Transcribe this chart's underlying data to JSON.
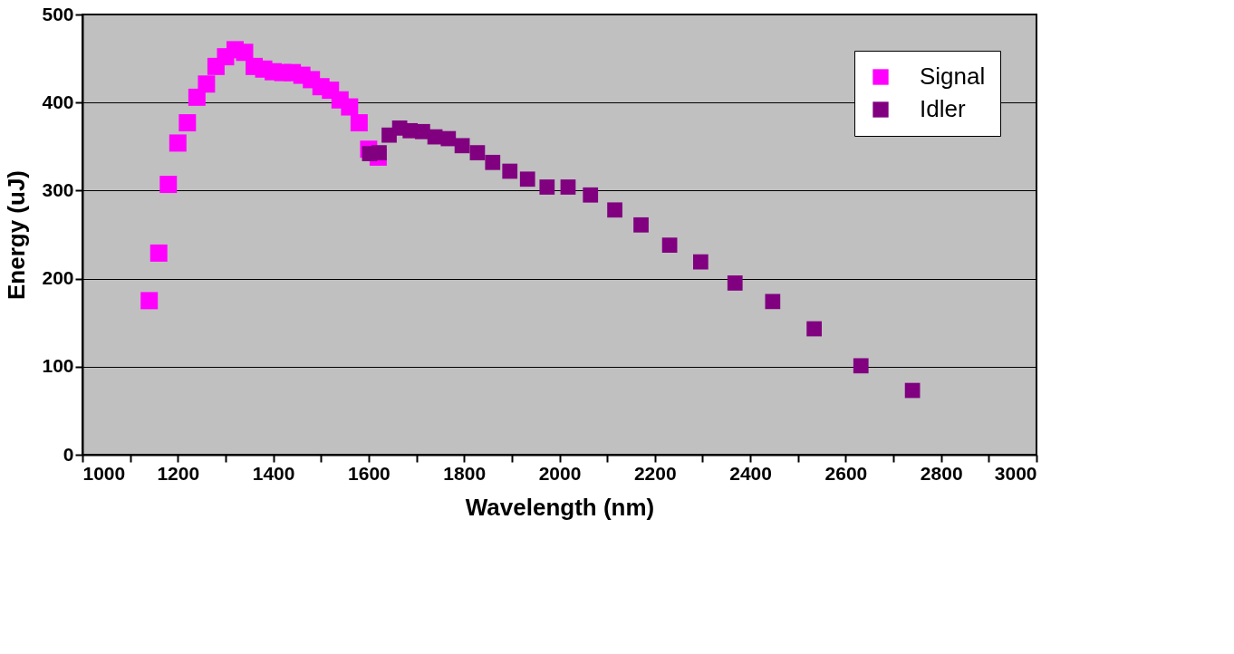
{
  "chart_data": {
    "type": "scatter",
    "xlabel": "Wavelength (nm)",
    "ylabel": "Energy (uJ)",
    "xlim": [
      1000,
      3000
    ],
    "xticks": [
      1000,
      {
        "value": 1100,
        "label": null
      },
      1200,
      {
        "value": 1300,
        "label": null
      },
      1400,
      {
        "value": 1500,
        "label": null
      },
      1600,
      {
        "value": 1700,
        "label": null
      },
      1800,
      {
        "value": 1900,
        "label": null
      },
      2000,
      {
        "value": 2100,
        "label": null
      },
      2200,
      {
        "value": 2300,
        "label": null
      },
      2400,
      {
        "value": 2500,
        "label": null
      },
      2600,
      {
        "value": 2700,
        "label": null
      },
      2800,
      {
        "value": 2900,
        "label": null
      },
      3000
    ],
    "ylim": [
      0,
      500
    ],
    "yticks": [
      0,
      100,
      200,
      300,
      400,
      500
    ],
    "grid": "y",
    "legend": "top right",
    "marker": "square",
    "series": [
      {
        "name": "Signal",
        "color": "#ff00ff",
        "x": [
          1140,
          1160,
          1180,
          1200,
          1220,
          1240,
          1260,
          1280,
          1300,
          1320,
          1340,
          1360,
          1380,
          1400,
          1420,
          1440,
          1460,
          1480,
          1500,
          1520,
          1540,
          1560,
          1580,
          1600,
          1620
        ],
        "values": [
          175,
          229,
          307,
          354,
          377,
          406,
          421,
          441,
          452,
          460,
          457,
          441,
          438,
          435,
          434,
          434,
          431,
          426,
          418,
          414,
          403,
          395,
          377,
          347,
          338
        ]
      },
      {
        "name": "Idler",
        "color": "#800080",
        "x": [
          1602,
          1622,
          1643,
          1665,
          1687,
          1713,
          1739,
          1767,
          1796,
          1828,
          1860,
          1896,
          1933,
          1974,
          2018,
          2065,
          2116,
          2171,
          2231,
          2296,
          2368,
          2447,
          2534,
          2632,
          2740
        ],
        "values": [
          342,
          343,
          363,
          371,
          368,
          367,
          361,
          359,
          351,
          343,
          332,
          322,
          313,
          304,
          304,
          295,
          278,
          261,
          238,
          219,
          195,
          174,
          143,
          101,
          73
        ]
      }
    ]
  }
}
